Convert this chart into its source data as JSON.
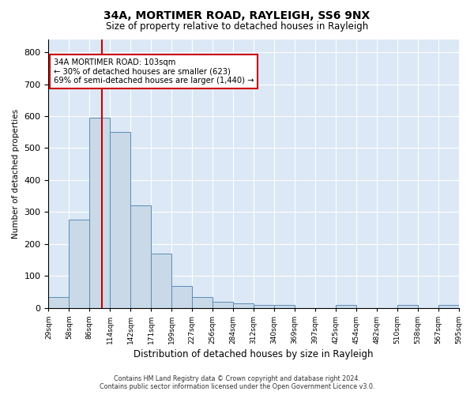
{
  "title": "34A, MORTIMER ROAD, RAYLEIGH, SS6 9NX",
  "subtitle": "Size of property relative to detached houses in Rayleigh",
  "xlabel": "Distribution of detached houses by size in Rayleigh",
  "ylabel": "Number of detached properties",
  "footer_line1": "Contains HM Land Registry data © Crown copyright and database right 2024.",
  "footer_line2": "Contains public sector information licensed under the Open Government Licence v3.0.",
  "annotation_line1": "34A MORTIMER ROAD: 103sqm",
  "annotation_line2": "← 30% of detached houses are smaller (623)",
  "annotation_line3": "69% of semi-detached houses are larger (1,440) →",
  "bar_color": "#c9d9e8",
  "bar_edge_color": "#5b8db8",
  "vline_color": "#cc0000",
  "bg_color": "#dce8f5",
  "annotation_box_color": "#ffffff",
  "annotation_box_edge": "#cc0000",
  "bin_labels": [
    "29sqm",
    "58sqm",
    "86sqm",
    "114sqm",
    "142sqm",
    "171sqm",
    "199sqm",
    "227sqm",
    "256sqm",
    "284sqm",
    "312sqm",
    "340sqm",
    "369sqm",
    "397sqm",
    "425sqm",
    "454sqm",
    "482sqm",
    "510sqm",
    "538sqm",
    "567sqm",
    "595sqm"
  ],
  "counts": [
    35,
    275,
    595,
    550,
    320,
    170,
    68,
    35,
    20,
    15,
    10,
    10,
    0,
    0,
    8,
    0,
    0,
    8,
    0,
    8
  ],
  "vline_x": 103,
  "xlim_min": 29,
  "xlim_max": 595,
  "ylim": [
    0,
    840
  ],
  "yticks": [
    0,
    100,
    200,
    300,
    400,
    500,
    600,
    700,
    800
  ]
}
